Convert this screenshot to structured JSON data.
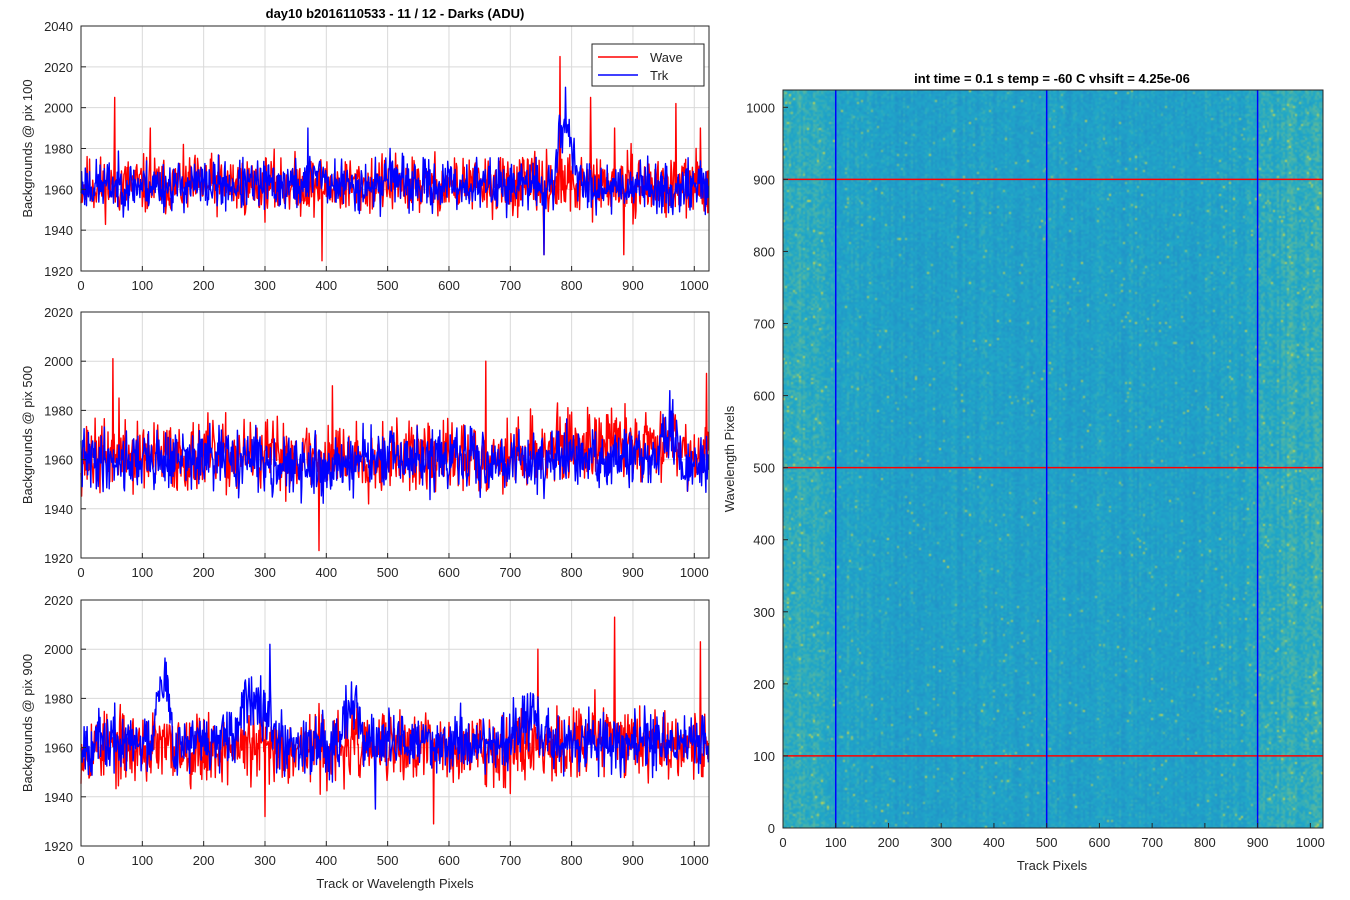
{
  "figure": {
    "background": "#ffffff",
    "grid_color": "#d9d9d9",
    "axis_color": "#262626"
  },
  "chart_data": [
    {
      "type": "line",
      "title": "day10 b2016110533 - 11 / 12 - Darks (ADU)",
      "xlabel": "",
      "ylabel": "Backgrounds @ pix 100",
      "xlim": [
        0,
        1024
      ],
      "ylim": [
        1920,
        2040
      ],
      "xticks": [
        0,
        100,
        200,
        300,
        400,
        500,
        600,
        700,
        800,
        900,
        1000
      ],
      "yticks": [
        1920,
        1940,
        1960,
        1980,
        2000,
        2020,
        2040
      ],
      "grid": true,
      "legend": {
        "position": "top-right",
        "entries": [
          "Wave",
          "Trk"
        ]
      },
      "series": [
        {
          "name": "Wave",
          "color": "#ff0000",
          "mean": 1962,
          "noise": 7,
          "seed": 11,
          "segments": [],
          "spikes": [
            [
              55,
              2005
            ],
            [
              113,
              1990
            ],
            [
              393,
              1925
            ],
            [
              550,
              1970
            ],
            [
              755,
              1928
            ],
            [
              781,
              2025
            ],
            [
              831,
              2005
            ],
            [
              870,
              1990
            ],
            [
              885,
              1928
            ],
            [
              970,
              2002
            ],
            [
              1010,
              1990
            ]
          ]
        },
        {
          "name": "Trk",
          "color": "#0000ff",
          "mean": 1962,
          "noise": 6,
          "seed": 23,
          "segments": [
            [
              370,
              400,
              8
            ],
            [
              490,
              520,
              7
            ],
            [
              770,
              810,
              30
            ],
            [
              940,
              970,
              -5
            ]
          ],
          "spikes": [
            [
              370,
              1990
            ],
            [
              755,
              1928
            ],
            [
              790,
              2010
            ]
          ]
        }
      ]
    },
    {
      "type": "line",
      "title": "",
      "xlabel": "",
      "ylabel": "Backgrounds @ pix 500",
      "xlim": [
        0,
        1024
      ],
      "ylim": [
        1920,
        2020
      ],
      "xticks": [
        0,
        100,
        200,
        300,
        400,
        500,
        600,
        700,
        800,
        900,
        1000
      ],
      "yticks": [
        1920,
        1940,
        1960,
        1980,
        2000,
        2020
      ],
      "grid": true,
      "series": [
        {
          "name": "Wave",
          "color": "#ff0000",
          "mean": 1961,
          "noise": 7,
          "seed": 37,
          "segments": [
            [
              700,
              1024,
              6
            ],
            [
              930,
              990,
              5
            ]
          ],
          "spikes": [
            [
              52,
              2001
            ],
            [
              62,
              1985
            ],
            [
              388,
              1923
            ],
            [
              410,
              1990
            ],
            [
              660,
              2000
            ],
            [
              1020,
              1995
            ]
          ]
        },
        {
          "name": "Trk",
          "color": "#0000ff",
          "mean": 1960,
          "noise": 6,
          "seed": 41,
          "segments": [
            [
              300,
              450,
              -4
            ],
            [
              940,
              975,
              12
            ],
            [
              975,
              1024,
              -4
            ]
          ],
          "spikes": [
            [
              960,
              1988
            ]
          ]
        }
      ]
    },
    {
      "type": "line",
      "title": "",
      "xlabel": "Track or Wavelength Pixels",
      "ylabel": "Backgrounds @ pix 900",
      "xlim": [
        0,
        1024
      ],
      "ylim": [
        1920,
        2020
      ],
      "xticks": [
        0,
        100,
        200,
        300,
        400,
        500,
        600,
        700,
        800,
        900,
        1000
      ],
      "yticks": [
        1920,
        1940,
        1960,
        1980,
        2000,
        2020
      ],
      "grid": true,
      "series": [
        {
          "name": "Wave",
          "color": "#ff0000",
          "mean": 1960,
          "noise": 7,
          "seed": 53,
          "segments": [
            [
              700,
              1024,
              4
            ]
          ],
          "spikes": [
            [
              300,
              1932
            ],
            [
              575,
              1929
            ],
            [
              745,
              2000
            ],
            [
              870,
              2013
            ],
            [
              1010,
              2003
            ]
          ]
        },
        {
          "name": "Trk",
          "color": "#0000ff",
          "mean": 1962,
          "noise": 6,
          "seed": 67,
          "segments": [
            [
              115,
              150,
              28
            ],
            [
              250,
              320,
              20
            ],
            [
              420,
              460,
              18
            ],
            [
              700,
              760,
              10
            ]
          ],
          "spikes": [
            [
              308,
              2002
            ],
            [
              480,
              1935
            ]
          ]
        }
      ]
    },
    {
      "type": "heatmap",
      "title": "int time = 0.1 s   temp = -60 C   vhsift = 4.25e-06",
      "xlabel": "Track Pixels",
      "ylabel": "Wavelength Pixels",
      "xlim": [
        0,
        1024
      ],
      "ylim": [
        0,
        1024
      ],
      "xticks": [
        0,
        100,
        200,
        300,
        400,
        500,
        600,
        700,
        800,
        900,
        1000
      ],
      "yticks": [
        0,
        100,
        200,
        300,
        400,
        500,
        600,
        700,
        800,
        900,
        1000
      ],
      "colormap": {
        "low": "#1f78c8",
        "mid": "#20a8c8",
        "high": "#c8d84a"
      },
      "overlays": {
        "horizontal_lines": {
          "color": "#ff0000",
          "values": [
            100,
            500,
            900
          ]
        },
        "vertical_lines": {
          "color": "#0000ff",
          "values": [
            100,
            500,
            900
          ]
        }
      }
    }
  ]
}
